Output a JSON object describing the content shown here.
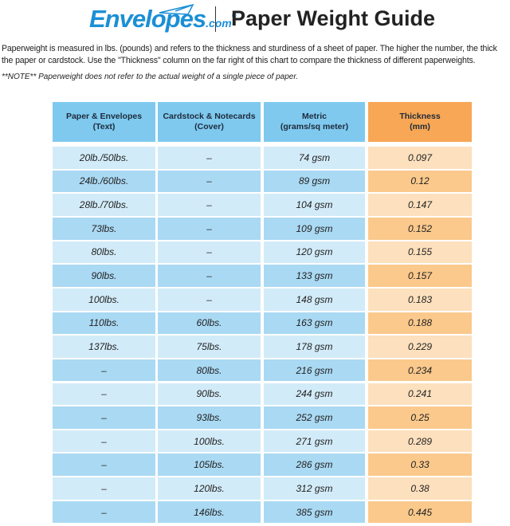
{
  "header": {
    "logo_main": "Envelopes",
    "logo_suffix": ".com",
    "logo_mark": "®",
    "title": "Paper Weight Guide"
  },
  "intro": {
    "lines": [
      "Paperweight is measured in lbs. (pounds) and refers to the thickness and sturdiness of a sheet of paper. The higher the number, the thick",
      "the paper or cardstock. Use the \"Thickness\" column on the far right of this chart to compare the thickness of different paperweights."
    ],
    "note": "**NOTE** Paperweight does not refer to the actual weight of a single piece of paper."
  },
  "table": {
    "columns": [
      [
        "Paper & Envelopes",
        "(Text)"
      ],
      [
        "Cardstock & Notecards",
        "(Cover)"
      ],
      [
        "Metric",
        "(grams/sq meter)"
      ],
      [
        "Thickness",
        "(mm)"
      ]
    ],
    "rows": [
      [
        "20lb./50lbs.",
        "–",
        "74 gsm",
        "0.097"
      ],
      [
        "24lb./60lbs.",
        "–",
        "89 gsm",
        "0.12"
      ],
      [
        "28lb./70lbs.",
        "–",
        "104 gsm",
        "0.147"
      ],
      [
        "73lbs.",
        "–",
        "109 gsm",
        "0.152"
      ],
      [
        "80lbs.",
        "–",
        "120 gsm",
        "0.155"
      ],
      [
        "90lbs.",
        "–",
        "133 gsm",
        "0.157"
      ],
      [
        "100lbs.",
        "–",
        "148 gsm",
        "0.183"
      ],
      [
        "110lbs.",
        "60lbs.",
        "163 gsm",
        "0.188"
      ],
      [
        "137lbs.",
        "75lbs.",
        "178 gsm",
        "0.229"
      ],
      [
        "–",
        "80lbs.",
        "216 gsm",
        "0.234"
      ],
      [
        "–",
        "90lbs.",
        "244 gsm",
        "0.241"
      ],
      [
        "–",
        "93lbs.",
        "252 gsm",
        "0.25"
      ],
      [
        "–",
        "100lbs.",
        "271 gsm",
        "0.289"
      ],
      [
        "–",
        "105lbs.",
        "286 gsm",
        "0.33"
      ],
      [
        "–",
        "120lbs.",
        "312 gsm",
        "0.38"
      ],
      [
        "–",
        "146lbs.",
        "385 gsm",
        "0.445"
      ]
    ]
  }
}
